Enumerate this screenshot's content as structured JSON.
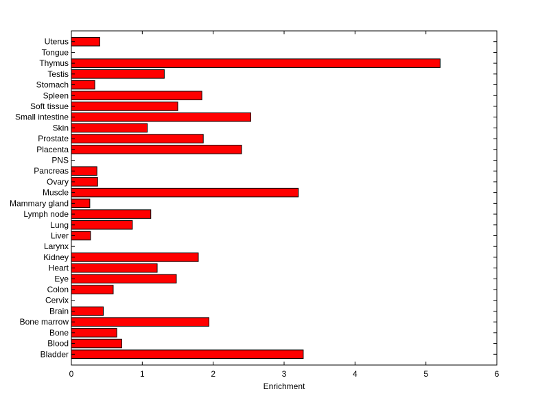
{
  "chart_data": {
    "type": "bar",
    "orientation": "horizontal",
    "title": "",
    "xlabel": "Enrichment",
    "ylabel": "",
    "xlim": [
      0,
      6
    ],
    "xticks": [
      0,
      1,
      2,
      3,
      4,
      5,
      6
    ],
    "grid": false,
    "bar_color": "#ff0000",
    "bar_edge_color": "#000000",
    "categories": [
      "Bladder",
      "Blood",
      "Bone",
      "Bone marrow",
      "Brain",
      "Cervix",
      "Colon",
      "Eye",
      "Heart",
      "Kidney",
      "Larynx",
      "Liver",
      "Lung",
      "Lymph node",
      "Mammary gland",
      "Muscle",
      "Ovary",
      "Pancreas",
      "PNS",
      "Placenta",
      "Prostate",
      "Skin",
      "Small intestine",
      "Soft tissue",
      "Spleen",
      "Stomach",
      "Testis",
      "Thymus",
      "Tongue",
      "Uterus"
    ],
    "values": [
      3.27,
      0.71,
      0.64,
      1.94,
      0.45,
      0,
      0.59,
      1.48,
      1.21,
      1.79,
      0,
      0.27,
      0.86,
      1.12,
      0.26,
      3.2,
      0.37,
      0.36,
      0,
      2.4,
      1.86,
      1.07,
      2.53,
      1.5,
      1.84,
      0.33,
      1.31,
      5.2,
      0,
      0.4
    ]
  }
}
